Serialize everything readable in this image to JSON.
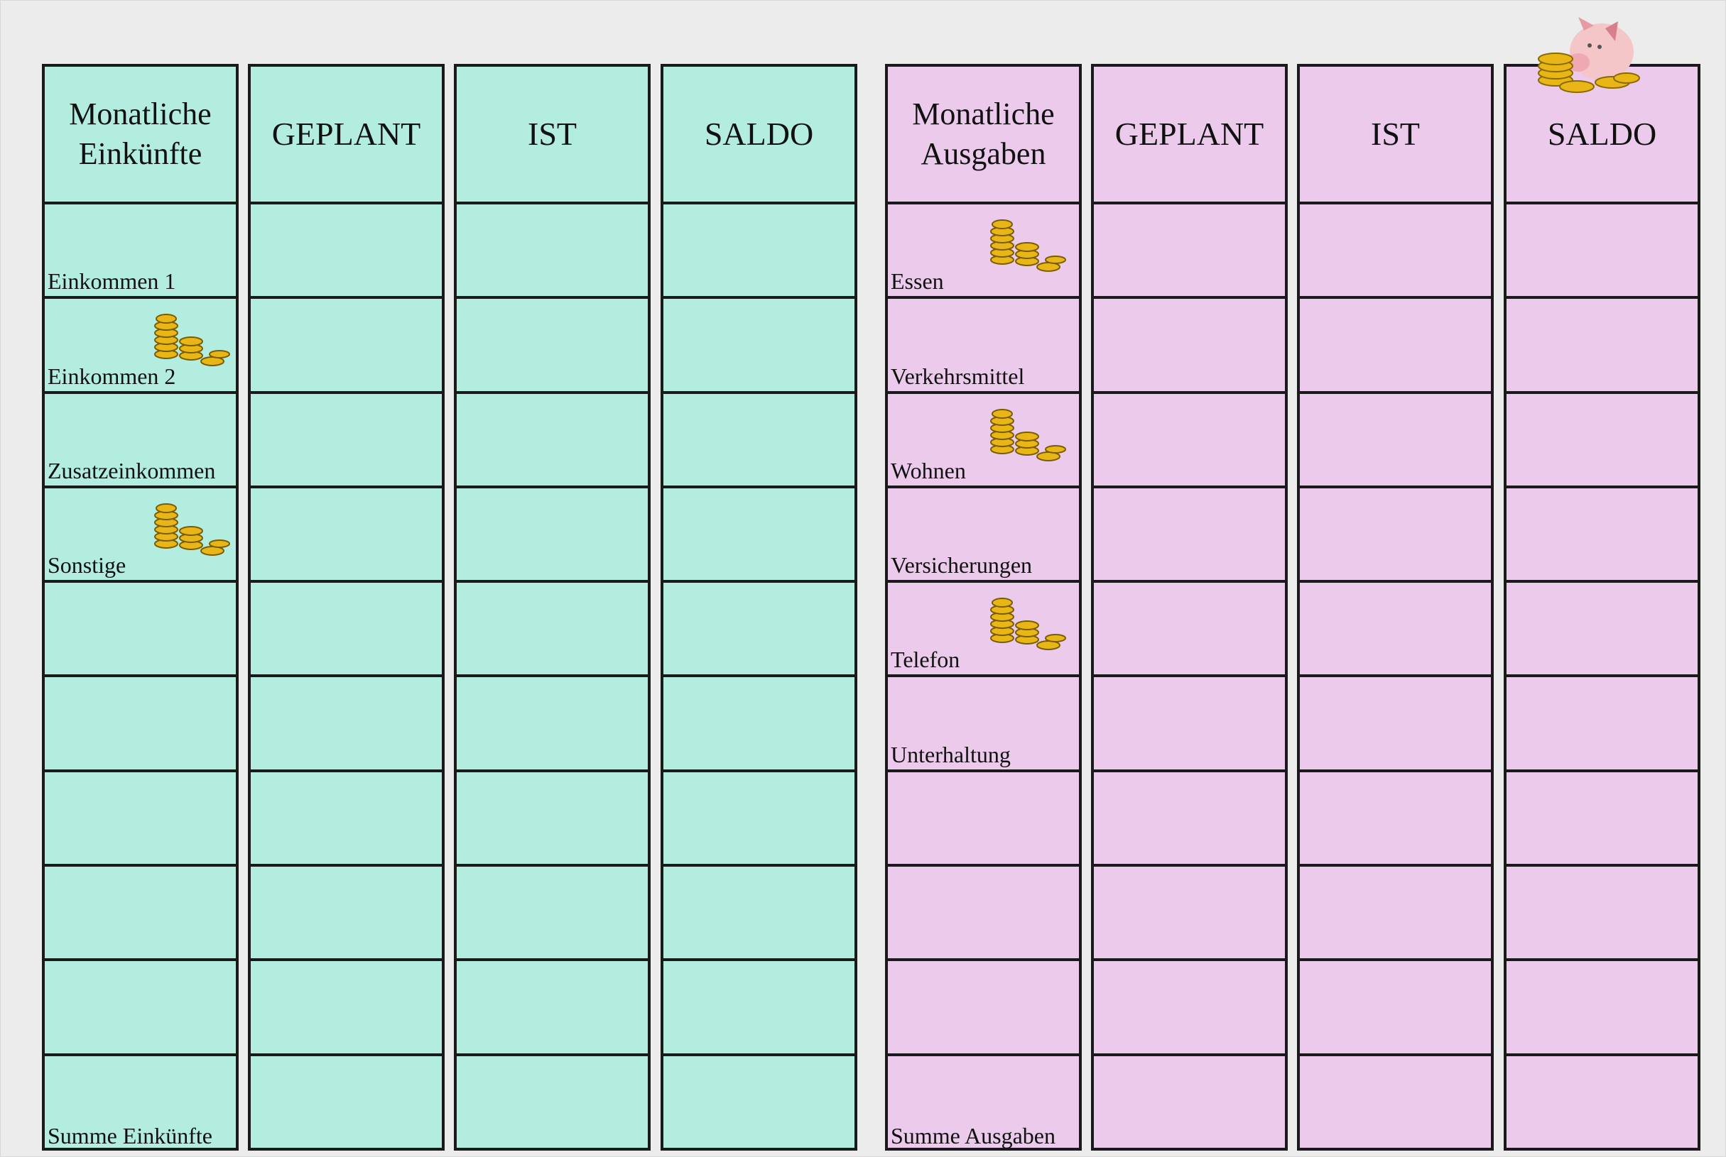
{
  "income": {
    "headers": [
      "Monatliche\nEinkünfte",
      "GEPLANT",
      "IST",
      "SALDO"
    ],
    "rows": [
      "Einkommen 1",
      "Einkommen 2",
      "Zusatzeinkommen",
      "Sonstige",
      "",
      "",
      "",
      "",
      "",
      "Summe Einkünfte"
    ],
    "coin_rows": [
      1,
      3
    ],
    "color": "#b3ede0"
  },
  "expenses": {
    "headers": [
      "Monatliche\nAusgaben",
      "GEPLANT",
      "IST",
      "SALDO"
    ],
    "rows": [
      "Essen",
      "Verkehrsmittel",
      "Wohnen",
      "Versicherungen",
      "Telefon",
      "Unterhaltung",
      "",
      "",
      "",
      "Summe Ausgaben"
    ],
    "coin_rows": [
      0,
      2,
      4
    ],
    "color": "#ebcaec"
  },
  "decorations": {
    "icons": [
      "coin-stack-icon",
      "piggy-bank-icon"
    ]
  }
}
